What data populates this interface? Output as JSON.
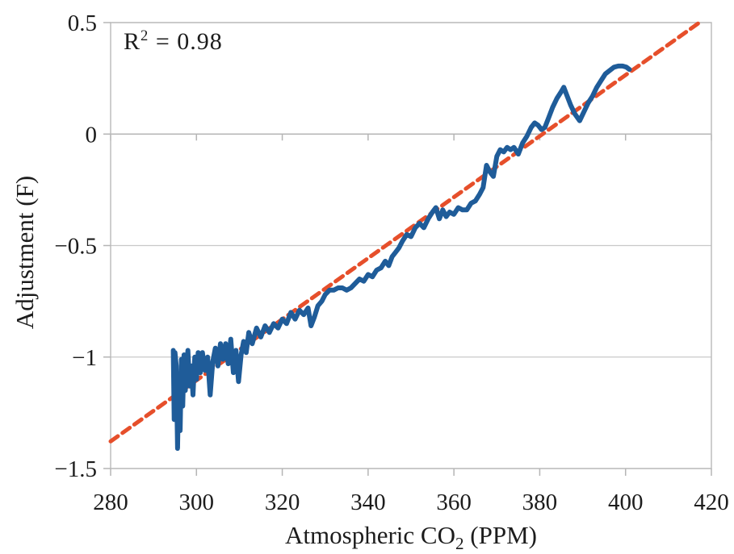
{
  "chart_data": {
    "type": "line",
    "title": "",
    "xlabel": {
      "prefix": "Atmospheric CO",
      "sub": "2",
      "suffix": " (PPM)"
    },
    "ylabel": "Adjustment (F)",
    "annotation": {
      "base": "R",
      "sup": "2",
      "rest": " = 0.98"
    },
    "xlim": [
      280,
      420
    ],
    "ylim": [
      -1.5,
      0.5
    ],
    "grid": "horizontal",
    "legend": "none",
    "x_ticks": {
      "values": [
        280,
        300,
        320,
        340,
        360,
        380,
        400,
        420
      ],
      "labels": [
        "280",
        "300",
        "320",
        "340",
        "360",
        "380",
        "400",
        "420"
      ]
    },
    "y_ticks": {
      "values": [
        0.5,
        0,
        -0.5,
        -1,
        -1.5
      ],
      "labels": [
        "0.5",
        "0",
        "−0.5",
        "−1",
        "−1.5"
      ]
    },
    "series": [
      {
        "name": "adjustment-vs-co2",
        "style": "solid",
        "color": "#1f5c99",
        "width": 6,
        "points": [
          [
            294.6,
            -0.97
          ],
          [
            294.8,
            -1.28
          ],
          [
            295.0,
            -0.98
          ],
          [
            295.3,
            -1.04
          ],
          [
            295.6,
            -1.41
          ],
          [
            295.9,
            -1.08
          ],
          [
            296.2,
            -1.33
          ],
          [
            296.5,
            -1.01
          ],
          [
            296.8,
            -1.22
          ],
          [
            297.1,
            -0.99
          ],
          [
            297.4,
            -1.15
          ],
          [
            297.7,
            -1.05
          ],
          [
            298.0,
            -0.97
          ],
          [
            298.4,
            -1.13
          ],
          [
            298.8,
            -1.04
          ],
          [
            299.2,
            -1.17
          ],
          [
            299.6,
            -1.0
          ],
          [
            300.0,
            -1.1
          ],
          [
            300.4,
            -0.98
          ],
          [
            300.9,
            -1.07
          ],
          [
            301.4,
            -0.98
          ],
          [
            302.0,
            -1.06
          ],
          [
            302.6,
            -1.0
          ],
          [
            303.2,
            -1.17
          ],
          [
            303.8,
            -1.02
          ],
          [
            304.4,
            -0.96
          ],
          [
            305.0,
            -1.04
          ],
          [
            305.6,
            -0.94
          ],
          [
            306.2,
            -1.01
          ],
          [
            306.8,
            -0.94
          ],
          [
            307.4,
            -1.03
          ],
          [
            308.0,
            -0.92
          ],
          [
            308.6,
            -1.07
          ],
          [
            309.2,
            -0.97
          ],
          [
            309.8,
            -1.11
          ],
          [
            310.4,
            -0.99
          ],
          [
            311.0,
            -0.93
          ],
          [
            311.6,
            -0.98
          ],
          [
            312.2,
            -0.89
          ],
          [
            313.0,
            -0.94
          ],
          [
            314.0,
            -0.87
          ],
          [
            315.0,
            -0.91
          ],
          [
            316.0,
            -0.86
          ],
          [
            317.0,
            -0.89
          ],
          [
            318.0,
            -0.85
          ],
          [
            319.0,
            -0.87
          ],
          [
            320.0,
            -0.83
          ],
          [
            321.0,
            -0.85
          ],
          [
            322.0,
            -0.8
          ],
          [
            323.0,
            -0.83
          ],
          [
            324.0,
            -0.79
          ],
          [
            325.0,
            -0.81
          ],
          [
            326.0,
            -0.78
          ],
          [
            326.7,
            -0.86
          ],
          [
            327.5,
            -0.82
          ],
          [
            328.3,
            -0.77
          ],
          [
            329.2,
            -0.75
          ],
          [
            330.0,
            -0.72
          ],
          [
            331.0,
            -0.7
          ],
          [
            332.0,
            -0.7
          ],
          [
            333.0,
            -0.69
          ],
          [
            334.0,
            -0.69
          ],
          [
            335.0,
            -0.7
          ],
          [
            336.0,
            -0.69
          ],
          [
            337.0,
            -0.67
          ],
          [
            338.0,
            -0.65
          ],
          [
            339.0,
            -0.66
          ],
          [
            340.0,
            -0.63
          ],
          [
            341.0,
            -0.64
          ],
          [
            342.0,
            -0.61
          ],
          [
            343.0,
            -0.6
          ],
          [
            344.0,
            -0.57
          ],
          [
            344.8,
            -0.59
          ],
          [
            345.6,
            -0.55
          ],
          [
            346.4,
            -0.53
          ],
          [
            347.2,
            -0.51
          ],
          [
            348.0,
            -0.48
          ],
          [
            349.0,
            -0.45
          ],
          [
            350.0,
            -0.46
          ],
          [
            351.0,
            -0.42
          ],
          [
            352.0,
            -0.4
          ],
          [
            353.0,
            -0.42
          ],
          [
            354.0,
            -0.38
          ],
          [
            355.0,
            -0.35
          ],
          [
            355.8,
            -0.33
          ],
          [
            356.6,
            -0.38
          ],
          [
            357.4,
            -0.34
          ],
          [
            358.2,
            -0.37
          ],
          [
            359.0,
            -0.35
          ],
          [
            360.0,
            -0.36
          ],
          [
            361.0,
            -0.33
          ],
          [
            362.0,
            -0.34
          ],
          [
            363.0,
            -0.34
          ],
          [
            364.0,
            -0.31
          ],
          [
            365.0,
            -0.3
          ],
          [
            366.0,
            -0.27
          ],
          [
            366.8,
            -0.24
          ],
          [
            367.6,
            -0.14
          ],
          [
            368.4,
            -0.17
          ],
          [
            369.2,
            -0.19
          ],
          [
            370.0,
            -0.1
          ],
          [
            370.8,
            -0.07
          ],
          [
            371.6,
            -0.08
          ],
          [
            372.4,
            -0.06
          ],
          [
            373.2,
            -0.07
          ],
          [
            374.0,
            -0.06
          ],
          [
            375.0,
            -0.09
          ],
          [
            376.0,
            -0.04
          ],
          [
            377.0,
            -0.01
          ],
          [
            378.0,
            0.03
          ],
          [
            378.8,
            0.05
          ],
          [
            379.6,
            0.04
          ],
          [
            380.4,
            0.02
          ],
          [
            381.2,
            0.03
          ],
          [
            382.0,
            0.07
          ],
          [
            383.0,
            0.12
          ],
          [
            384.0,
            0.16
          ],
          [
            385.0,
            0.19
          ],
          [
            385.6,
            0.21
          ],
          [
            386.4,
            0.17
          ],
          [
            387.2,
            0.13
          ],
          [
            388.2,
            0.09
          ],
          [
            389.3,
            0.06
          ],
          [
            390.3,
            0.1
          ],
          [
            391.3,
            0.14
          ],
          [
            392.3,
            0.17
          ],
          [
            393.3,
            0.21
          ],
          [
            394.3,
            0.24
          ],
          [
            395.3,
            0.27
          ],
          [
            396.3,
            0.285
          ],
          [
            397.3,
            0.3
          ],
          [
            398.3,
            0.305
          ],
          [
            399.3,
            0.305
          ],
          [
            400.2,
            0.3
          ],
          [
            400.9,
            0.29
          ]
        ]
      },
      {
        "name": "linear-trend",
        "style": "dashed",
        "color": "#e64f2b",
        "width": 5,
        "dash": [
          11,
          7
        ],
        "points": [
          [
            280,
            -1.378
          ],
          [
            417.2,
            0.5
          ]
        ]
      }
    ],
    "colors": {
      "grid": "#c9c9c9",
      "border": "#bdbdbd",
      "zero_axis": "#b5b5b5",
      "tick": "#b5b5b5",
      "text": "#1c1c1c"
    }
  }
}
